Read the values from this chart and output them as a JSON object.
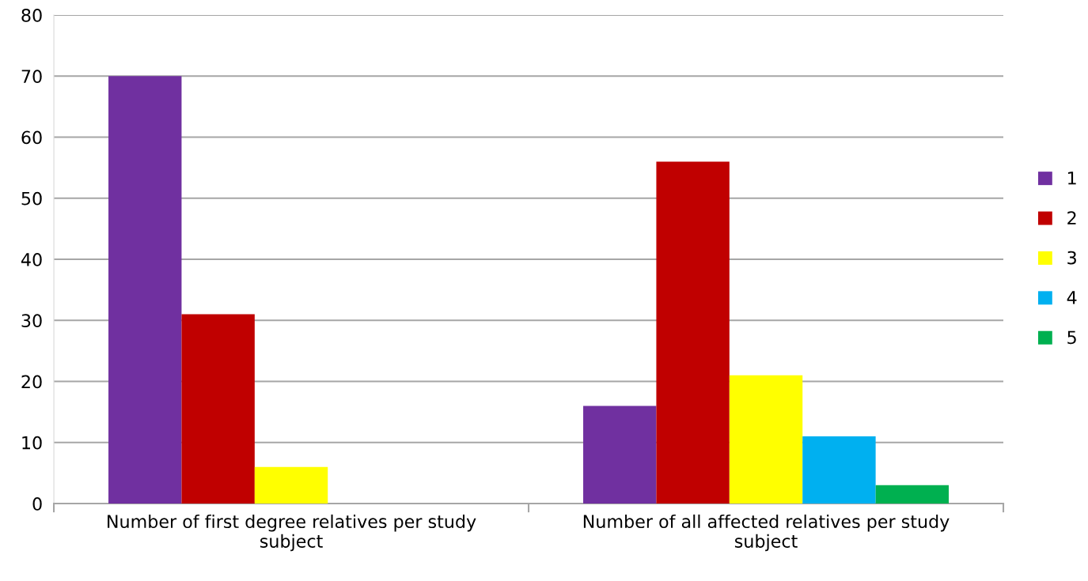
{
  "chart_data": {
    "type": "bar",
    "categories": [
      "Number of first degree relatives per study subject",
      "Number of all affected relatives per study subject"
    ],
    "series": [
      {
        "name": "1",
        "color": "#7030a0",
        "values": [
          70,
          16
        ]
      },
      {
        "name": "2",
        "color": "#c00000",
        "values": [
          31,
          56
        ]
      },
      {
        "name": "3",
        "color": "#ffff00",
        "values": [
          6,
          21
        ]
      },
      {
        "name": "4",
        "color": "#00b0f0",
        "values": [
          null,
          11
        ]
      },
      {
        "name": "5",
        "color": "#00b050",
        "values": [
          null,
          3
        ]
      }
    ],
    "ylim": [
      0,
      80
    ],
    "yticks": [
      0,
      10,
      20,
      30,
      40,
      50,
      60,
      70,
      80
    ],
    "grid": "y",
    "legend": "right"
  }
}
